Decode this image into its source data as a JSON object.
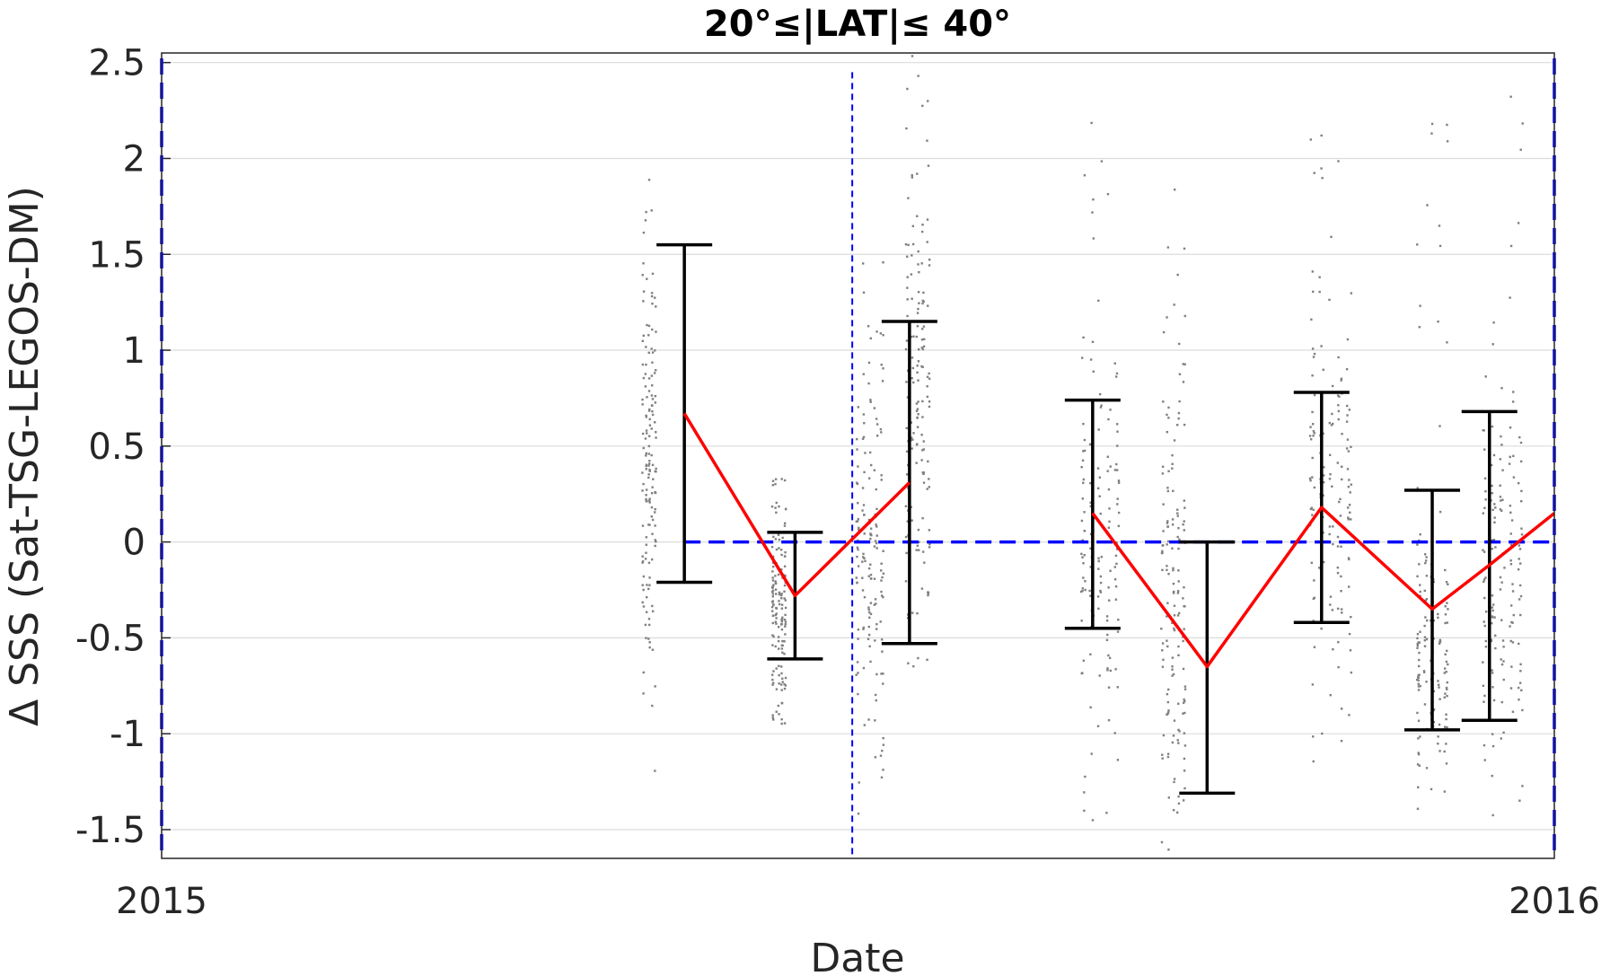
{
  "chart_data": {
    "type": "scatter",
    "title": "20°≤|LAT|≤ 40°",
    "xlabel": "Date",
    "ylabel": "Δ SSS (Sat-TSG-LEGOS-DM)",
    "xlim": [
      "2015-01-01",
      "2016-01-01"
    ],
    "ylim": [
      -1.65,
      2.55
    ],
    "x_ticks": [
      {
        "date": "2015-01-01",
        "label": "2015"
      },
      {
        "date": "2016-01-01",
        "label": "2016"
      }
    ],
    "y_ticks": [
      {
        "v": -1.5,
        "label": "-1.5"
      },
      {
        "v": -1,
        "label": "-1"
      },
      {
        "v": -0.5,
        "label": "-0.5"
      },
      {
        "v": 0,
        "label": "0"
      },
      {
        "v": 0.5,
        "label": "0.5"
      },
      {
        "v": 1,
        "label": "1"
      },
      {
        "v": 1.5,
        "label": "1.5"
      },
      {
        "v": 2,
        "label": "2"
      },
      {
        "v": 2.5,
        "label": "2.5"
      }
    ],
    "grid": true,
    "colors": {
      "scatter": "#808080",
      "mean_line": "#ff0000",
      "error_bars": "#000000",
      "reference": "#0000ff"
    },
    "reference_line": {
      "y": 0,
      "x_from": "2015-05-18",
      "x_to": "2016-01-01"
    },
    "boundary_lines": [
      "2015-01-01",
      "2015-07-01",
      "2016-01-01"
    ],
    "mean_series": {
      "x": [
        "2015-05-18",
        "2015-06-16",
        "2015-07-16",
        "2015-09-02",
        "2015-10-02",
        "2015-11-01",
        "2015-11-30",
        "2015-12-15",
        "2016-01-01"
      ],
      "y": [
        0.67,
        -0.28,
        0.31,
        0.15,
        -0.65,
        0.18,
        -0.35,
        -0.12,
        0.15
      ]
    },
    "error_bars": [
      {
        "x": "2015-05-18",
        "mean": 0.67,
        "low": -0.21,
        "high": 1.55
      },
      {
        "x": "2015-06-16",
        "mean": -0.28,
        "low": -0.61,
        "high": 0.05
      },
      {
        "x": "2015-07-16",
        "mean": 0.31,
        "low": -0.53,
        "high": 1.15
      },
      {
        "x": "2015-09-02",
        "mean": 0.15,
        "low": -0.45,
        "high": 0.74
      },
      {
        "x": "2015-10-02",
        "mean": -0.65,
        "low": -1.31,
        "high": 0.0
      },
      {
        "x": "2015-11-01",
        "mean": 0.18,
        "low": -0.42,
        "high": 0.78
      },
      {
        "x": "2015-11-30",
        "mean": -0.35,
        "low": -0.98,
        "high": 0.27
      },
      {
        "x": "2015-12-15",
        "mean": -0.12,
        "low": -0.93,
        "high": 0.68
      }
    ],
    "scatter_clusters": [
      {
        "x": [
          "2015-05-07",
          "2015-05-11"
        ],
        "y": [
          -1.35,
          2.3
        ],
        "center": 0.45,
        "spread": 0.5
      },
      {
        "x": [
          "2015-06-10",
          "2015-06-14"
        ],
        "y": [
          -0.95,
          0.5
        ],
        "center": -0.35,
        "spread": 0.28
      },
      {
        "x": [
          "2015-07-02",
          "2015-07-10"
        ],
        "y": [
          -1.45,
          1.5
        ],
        "center": -0.1,
        "spread": 0.45
      },
      {
        "x": [
          "2015-07-15",
          "2015-07-22"
        ],
        "y": [
          -0.8,
          2.55
        ],
        "center": 0.7,
        "spread": 0.6
      },
      {
        "x": [
          "2015-08-30",
          "2015-09-10"
        ],
        "y": [
          -1.6,
          2.3
        ],
        "center": 0.0,
        "spread": 0.4
      },
      {
        "x": [
          "2015-09-20",
          "2015-09-27"
        ],
        "y": [
          -1.6,
          1.85
        ],
        "center": -0.4,
        "spread": 0.6
      },
      {
        "x": [
          "2015-10-29",
          "2015-11-10"
        ],
        "y": [
          -1.4,
          2.2
        ],
        "center": 0.3,
        "spread": 0.45
      },
      {
        "x": [
          "2015-11-26",
          "2015-12-05"
        ],
        "y": [
          -1.6,
          2.3
        ],
        "center": -0.55,
        "spread": 0.35
      },
      {
        "x": [
          "2015-12-13",
          "2015-12-25"
        ],
        "y": [
          -1.2,
          2.4
        ],
        "center": -0.2,
        "spread": 0.5
      }
    ]
  }
}
